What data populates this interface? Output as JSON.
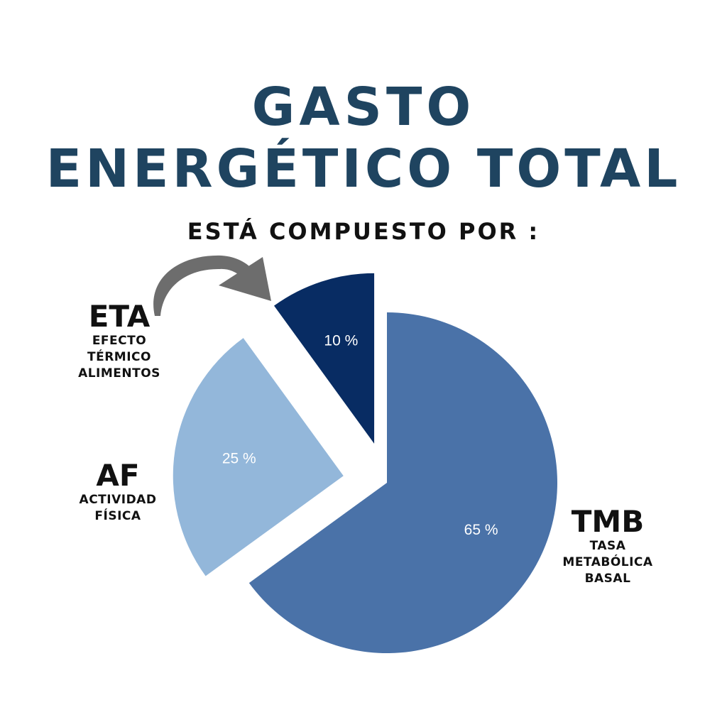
{
  "title": {
    "line1": "GASTO",
    "line2": "ENERGÉTICO TOTAL"
  },
  "subtitle": "ESTÁ COMPUESTO POR :",
  "labels": {
    "eta": {
      "abbr": "ETA",
      "desc": [
        "EFECTO",
        "TÉRMICO",
        "ALIMENTOS"
      ]
    },
    "af": {
      "abbr": "AF",
      "desc": [
        "ACTIVIDAD",
        "FÍSICA"
      ]
    },
    "tmb": {
      "abbr": "TMB",
      "desc": [
        "TASA",
        "METABÓLICA",
        "BASAL"
      ]
    }
  },
  "chart_data": {
    "type": "pie",
    "exploded": true,
    "categories": [
      "TMB",
      "AF",
      "ETA"
    ],
    "values": [
      65,
      25,
      10
    ],
    "value_labels": [
      "65 %",
      "25 %",
      "10 %"
    ],
    "colors": [
      "#4a72a8",
      "#93b7da",
      "#082c63"
    ],
    "annotation": {
      "type": "curved-arrow",
      "points_to": "ETA",
      "color": "#6d6d6d"
    }
  }
}
